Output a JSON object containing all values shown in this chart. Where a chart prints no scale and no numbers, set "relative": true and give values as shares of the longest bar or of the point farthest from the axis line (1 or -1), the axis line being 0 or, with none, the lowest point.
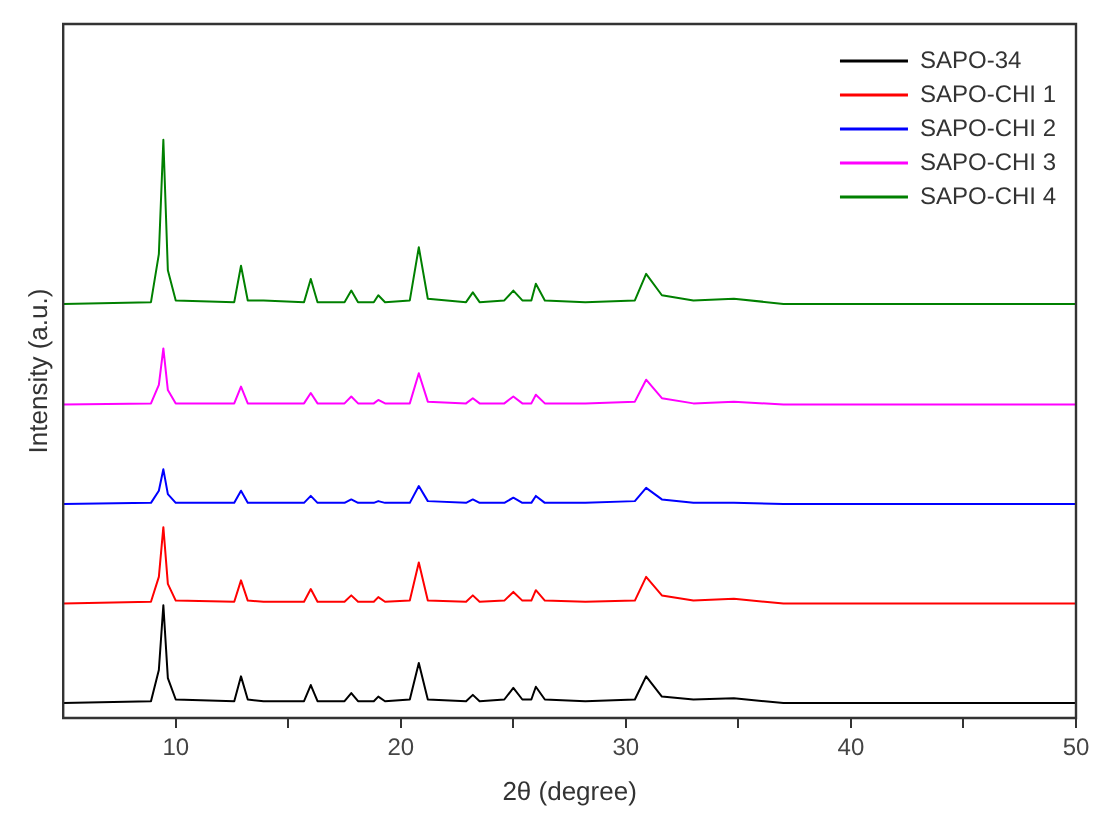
{
  "chart_data": {
    "type": "line",
    "xlabel": "2θ (degree)",
    "ylabel": "Intensity (a.u.)",
    "relative": true,
    "xlim": [
      5,
      50
    ],
    "xticks": [
      10,
      {
        "value": 15,
        "label": null
      },
      20,
      {
        "value": 25,
        "label": null
      },
      30,
      {
        "value": 35,
        "label": null
      },
      40,
      {
        "value": 45,
        "label": null
      },
      50
    ],
    "x": [
      5,
      8.9,
      9.25,
      9.45,
      9.65,
      10.0,
      12.6,
      12.9,
      13.2,
      13.9,
      15.7,
      16.0,
      16.3,
      17.5,
      17.8,
      18.1,
      18.8,
      19.0,
      19.3,
      20.4,
      20.8,
      21.2,
      22.9,
      23.2,
      23.5,
      24.6,
      25.0,
      25.4,
      25.8,
      26.0,
      26.4,
      28.2,
      30.4,
      30.9,
      31.6,
      33,
      34.8,
      37,
      50
    ],
    "grid": false,
    "legend": "top right",
    "marker": "none",
    "line_style": "solid",
    "series": [
      {
        "name": "SAPO-34",
        "color": "#000000",
        "values": [
          0.026,
          0.029,
          0.083,
          0.195,
          0.069,
          0.032,
          0.029,
          0.072,
          0.032,
          0.029,
          0.029,
          0.057,
          0.029,
          0.029,
          0.043,
          0.029,
          0.029,
          0.037,
          0.029,
          0.032,
          0.095,
          0.032,
          0.029,
          0.04,
          0.029,
          0.032,
          0.052,
          0.032,
          0.032,
          0.054,
          0.032,
          0.029,
          0.032,
          0.072,
          0.037,
          0.032,
          0.034,
          0.026,
          0.026
        ]
      },
      {
        "name": "SAPO-CHI 1",
        "color": "#ff0000",
        "values": [
          0.198,
          0.201,
          0.244,
          0.33,
          0.232,
          0.203,
          0.201,
          0.238,
          0.203,
          0.201,
          0.201,
          0.223,
          0.201,
          0.201,
          0.212,
          0.201,
          0.201,
          0.209,
          0.201,
          0.203,
          0.269,
          0.203,
          0.201,
          0.212,
          0.201,
          0.203,
          0.218,
          0.203,
          0.203,
          0.221,
          0.203,
          0.201,
          0.203,
          0.244,
          0.212,
          0.203,
          0.206,
          0.198,
          0.198
        ]
      },
      {
        "name": "SAPO-CHI 2",
        "color": "#0000ff",
        "values": [
          0.37,
          0.372,
          0.393,
          0.43,
          0.387,
          0.372,
          0.372,
          0.393,
          0.372,
          0.372,
          0.372,
          0.384,
          0.372,
          0.372,
          0.378,
          0.372,
          0.372,
          0.375,
          0.372,
          0.372,
          0.401,
          0.375,
          0.372,
          0.378,
          0.372,
          0.372,
          0.381,
          0.372,
          0.372,
          0.384,
          0.372,
          0.372,
          0.375,
          0.398,
          0.378,
          0.372,
          0.372,
          0.37,
          0.37
        ]
      },
      {
        "name": "SAPO-CHI 3",
        "color": "#ff00ff",
        "values": [
          0.542,
          0.544,
          0.576,
          0.639,
          0.567,
          0.544,
          0.544,
          0.573,
          0.544,
          0.544,
          0.544,
          0.562,
          0.544,
          0.544,
          0.556,
          0.544,
          0.544,
          0.55,
          0.544,
          0.544,
          0.596,
          0.547,
          0.544,
          0.553,
          0.544,
          0.544,
          0.556,
          0.544,
          0.544,
          0.559,
          0.544,
          0.544,
          0.547,
          0.585,
          0.553,
          0.544,
          0.547,
          0.542,
          0.542
        ]
      },
      {
        "name": "SAPO-CHI 4",
        "color": "#008000",
        "values": [
          0.716,
          0.719,
          0.802,
          1,
          0.774,
          0.722,
          0.719,
          0.782,
          0.722,
          0.722,
          0.719,
          0.759,
          0.719,
          0.719,
          0.739,
          0.719,
          0.719,
          0.731,
          0.719,
          0.722,
          0.814,
          0.725,
          0.719,
          0.736,
          0.719,
          0.722,
          0.739,
          0.722,
          0.722,
          0.751,
          0.722,
          0.719,
          0.722,
          0.768,
          0.731,
          0.722,
          0.725,
          0.716,
          0.716
        ]
      }
    ]
  }
}
